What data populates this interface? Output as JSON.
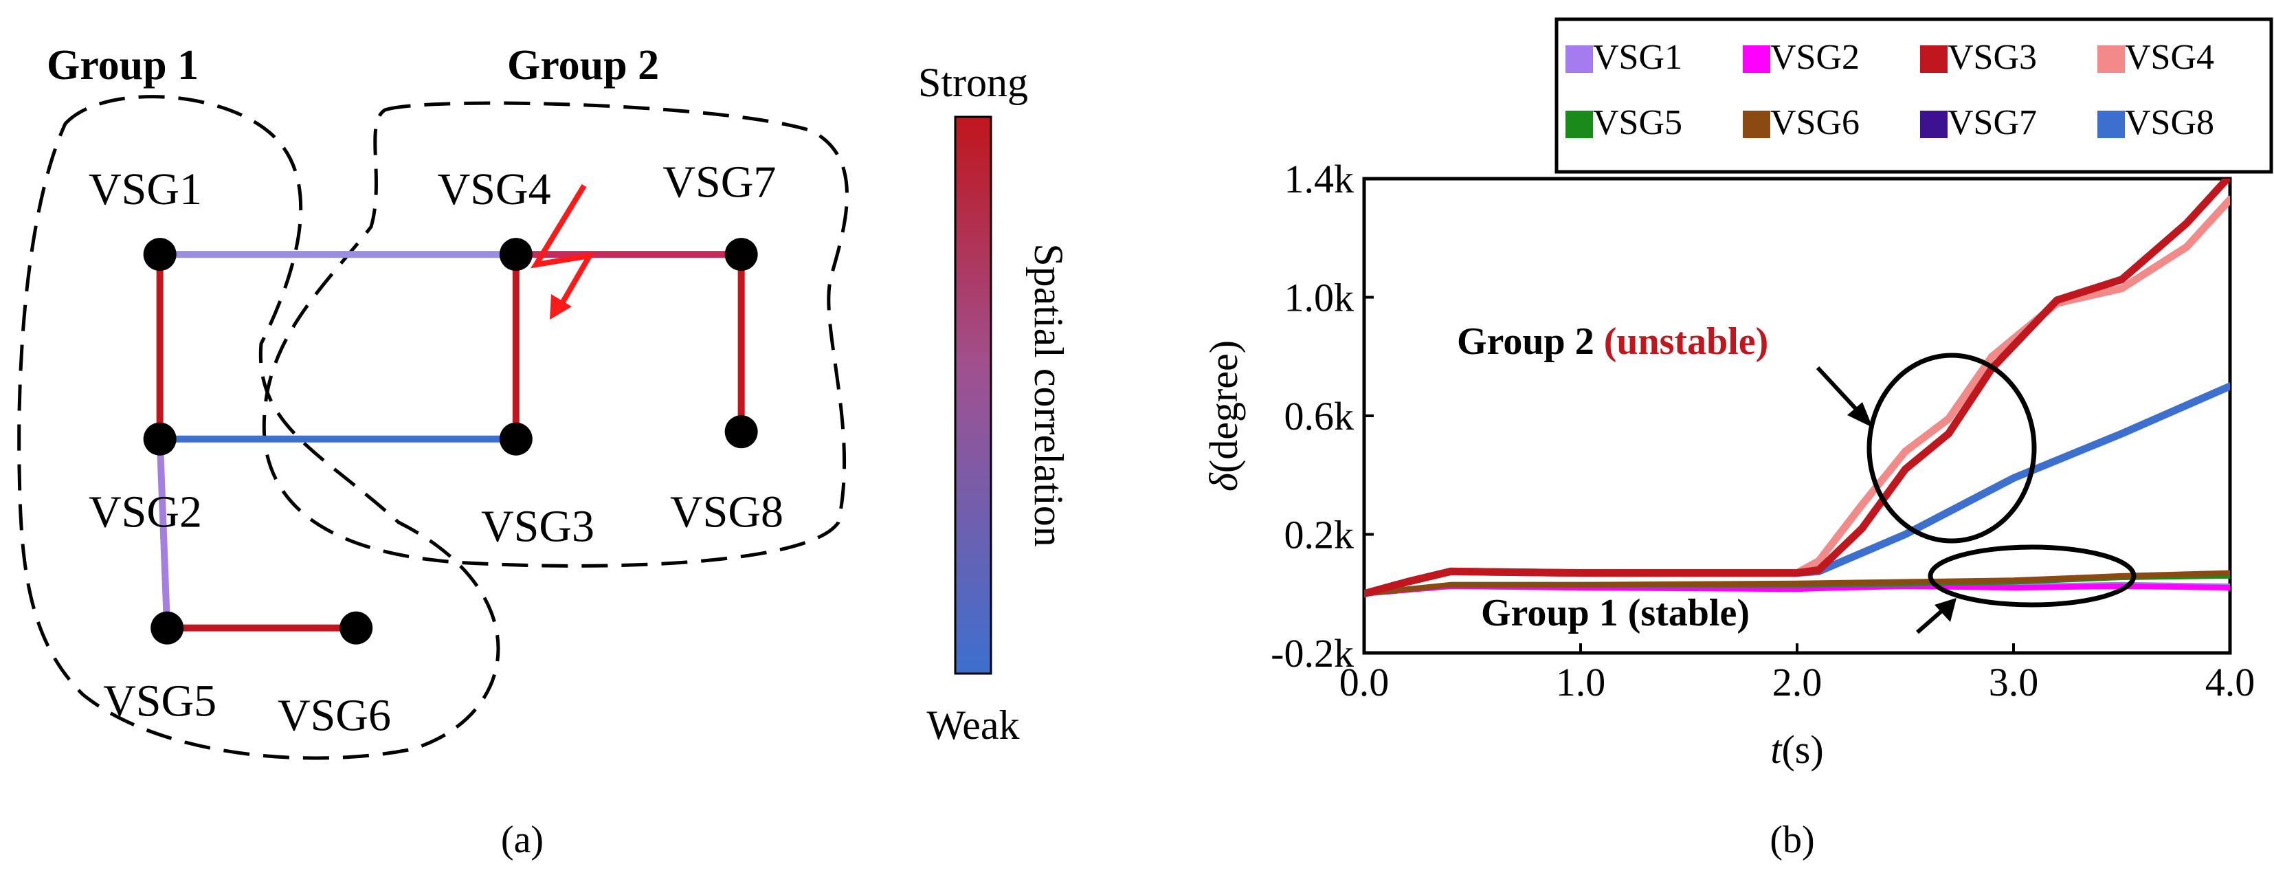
{
  "panel_a": {
    "caption": "(a)",
    "group1_label": "Group 1",
    "group2_label": "Group 2",
    "nodes": [
      "VSG1",
      "VSG2",
      "VSG3",
      "VSG4",
      "VSG5",
      "VSG6",
      "VSG7",
      "VSG8"
    ],
    "edges": [
      {
        "from": "VSG1",
        "to": "VSG4",
        "strength": "weak-medium",
        "color": "#9a8ee0"
      },
      {
        "from": "VSG1",
        "to": "VSG2",
        "strength": "strong",
        "color": "#c0161d"
      },
      {
        "from": "VSG2",
        "to": "VSG3",
        "strength": "weak",
        "color": "#3d6fcf"
      },
      {
        "from": "VSG4",
        "to": "VSG3",
        "strength": "strong",
        "color": "#c0161d"
      },
      {
        "from": "VSG4",
        "to": "VSG7",
        "strength": "strong-medium",
        "color": "#c42a5a"
      },
      {
        "from": "VSG7",
        "to": "VSG8",
        "strength": "strong",
        "color": "#c0161d"
      },
      {
        "from": "VSG2",
        "to": "VSG5",
        "strength": "weak-medium",
        "color": "#a47fe0"
      },
      {
        "from": "VSG5",
        "to": "VSG6",
        "strength": "strong",
        "color": "#c0161d"
      }
    ],
    "fault_marker_color": "#ff1a1a",
    "colorbar": {
      "top_label": "Strong",
      "bottom_label": "Weak",
      "axis_label": "Spatial correlation",
      "strong_color": "#c0161d",
      "weak_color": "#3d6fcf"
    }
  },
  "panel_b": {
    "caption": "(b)",
    "annotation_group2_prefix": "Group 2 ",
    "annotation_group2_status": "(unstable)",
    "annotation_group1": "Group 1 (stable)"
  },
  "chart_data": {
    "type": "line",
    "title": "",
    "xlabel_var": "t",
    "xlabel_unit": "(s)",
    "ylabel_var": "δ",
    "ylabel_unit": "(degree)",
    "xlim": [
      0,
      4
    ],
    "ylim": [
      -200,
      1400
    ],
    "xticks": [
      0,
      1,
      2,
      3,
      4
    ],
    "xtick_labels": [
      "0.0",
      "1.0",
      "2.0",
      "3.0",
      "4.0"
    ],
    "yticks": [
      -200,
      200,
      600,
      1000,
      1400
    ],
    "ytick_labels": [
      "-0.2k",
      "0.2k",
      "0.6k",
      "1.0k",
      "1.4k"
    ],
    "legend_position": "top-right (above plot)",
    "series": [
      {
        "name": "VSG1",
        "color": "#a57cf0",
        "x": [
          0,
          0.4,
          1,
          2,
          2.1,
          2.5,
          3,
          3.5,
          4
        ],
        "values": [
          0,
          25,
          20,
          18,
          20,
          30,
          25,
          30,
          25
        ]
      },
      {
        "name": "VSG2",
        "color": "#ff00ff",
        "x": [
          0,
          0.4,
          1,
          2,
          2.1,
          2.5,
          3,
          3.5,
          4
        ],
        "values": [
          0,
          25,
          20,
          15,
          18,
          25,
          20,
          25,
          20
        ]
      },
      {
        "name": "VSG3",
        "color": "#c0161d",
        "x": [
          0,
          0.2,
          0.4,
          1,
          2,
          2.1,
          2.3,
          2.5,
          2.7,
          2.9,
          3.2,
          3.5,
          3.8,
          4
        ],
        "values": [
          0,
          40,
          75,
          70,
          70,
          80,
          220,
          420,
          540,
          760,
          990,
          1060,
          1250,
          1410
        ]
      },
      {
        "name": "VSG4",
        "color": "#f28a8a",
        "x": [
          0,
          0.2,
          0.4,
          1,
          2,
          2.1,
          2.3,
          2.5,
          2.7,
          2.9,
          3.2,
          3.5,
          3.8,
          4
        ],
        "values": [
          0,
          40,
          75,
          70,
          70,
          110,
          300,
          480,
          590,
          800,
          980,
          1030,
          1170,
          1330
        ]
      },
      {
        "name": "VSG5",
        "color": "#1a8a1a",
        "x": [
          0,
          0.4,
          1,
          2,
          2.5,
          3,
          3.5,
          4
        ],
        "values": [
          0,
          30,
          30,
          30,
          35,
          40,
          55,
          60
        ]
      },
      {
        "name": "VSG6",
        "color": "#8a4a12",
        "x": [
          0,
          0.4,
          1,
          2,
          2.5,
          3,
          3.5,
          4
        ],
        "values": [
          0,
          30,
          30,
          35,
          40,
          45,
          60,
          70
        ]
      },
      {
        "name": "VSG7",
        "color": "#3c1290",
        "x": [
          0,
          0.2,
          0.4,
          1,
          2,
          2.1,
          2.5,
          3,
          3.5,
          4
        ],
        "values": [
          0,
          40,
          75,
          70,
          70,
          75,
          200,
          390,
          540,
          700
        ]
      },
      {
        "name": "VSG8",
        "color": "#3d6fcf",
        "x": [
          0,
          0.2,
          0.4,
          1,
          2,
          2.1,
          2.5,
          3,
          3.5,
          4
        ],
        "values": [
          0,
          40,
          75,
          70,
          70,
          75,
          200,
          390,
          540,
          700
        ]
      }
    ]
  }
}
